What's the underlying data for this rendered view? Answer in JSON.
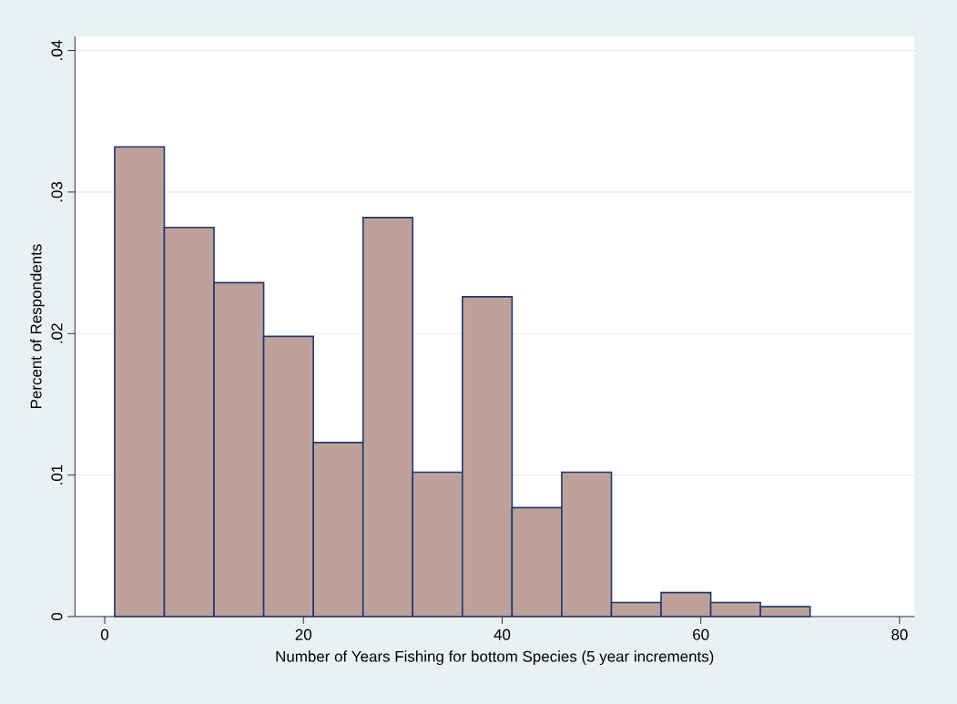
{
  "chart_data": {
    "type": "histogram",
    "xlabel": "Number of Years Fishing for bottom Species (5 year increments)",
    "ylabel": "Percent of Respondents",
    "bins": [
      1,
      6,
      11,
      16,
      21,
      26,
      31,
      36,
      41,
      46,
      51,
      56,
      61,
      66,
      71
    ],
    "values": [
      0.0332,
      0.0275,
      0.0236,
      0.0198,
      0.0123,
      0.0282,
      0.0102,
      0.0226,
      0.0077,
      0.0102,
      0.001,
      0.0017,
      0.001,
      0.0007
    ],
    "color": "#bda19a",
    "xlim": [
      -3,
      81.5
    ],
    "ylim": [
      0,
      0.041
    ],
    "xticks": [
      0,
      20,
      40,
      60,
      80
    ],
    "yticks": [
      0,
      {
        "value": 0.01,
        "label": ".01"
      },
      {
        "value": 0.02,
        "label": ".02"
      },
      {
        "value": 0.03,
        "label": ".03"
      },
      {
        "value": 0.04,
        "label": ".04"
      }
    ],
    "grid": "y"
  }
}
